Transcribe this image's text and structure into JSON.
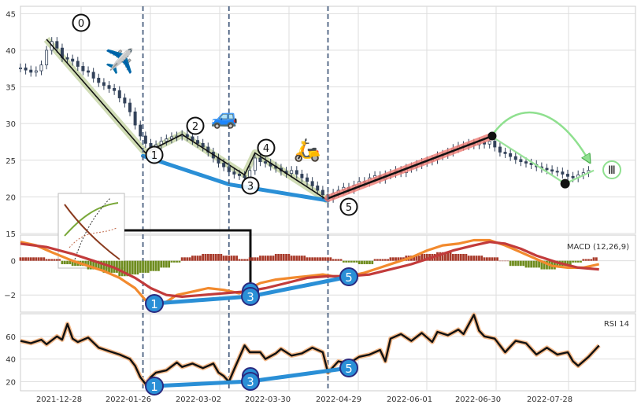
{
  "chart_data": [
    {
      "type": "candlestick",
      "panel": "price",
      "ylim": [
        15,
        46
      ],
      "yticks": [
        15,
        20,
        25,
        30,
        35,
        40,
        45
      ],
      "grid": true,
      "points": [
        [
          0,
          37.6
        ],
        [
          2,
          37.3
        ],
        [
          4,
          37.0
        ],
        [
          6,
          37.2
        ],
        [
          8,
          38.0
        ],
        [
          10,
          40.0
        ],
        [
          12,
          41.2
        ],
        [
          14,
          40.3
        ],
        [
          16,
          39.0
        ],
        [
          18,
          38.8
        ],
        [
          20,
          38.5
        ],
        [
          22,
          37.8
        ],
        [
          24,
          37.2
        ],
        [
          26,
          37.0
        ],
        [
          28,
          36.2
        ],
        [
          30,
          35.6
        ],
        [
          32,
          35.2
        ],
        [
          34,
          34.8
        ],
        [
          36,
          34.5
        ],
        [
          38,
          33.5
        ],
        [
          40,
          32.8
        ],
        [
          42,
          31.6
        ],
        [
          44,
          29.8
        ],
        [
          46,
          28.3
        ],
        [
          48,
          27.3
        ],
        [
          50,
          26.6
        ],
        [
          52,
          27.1
        ],
        [
          54,
          27.6
        ],
        [
          56,
          27.9
        ],
        [
          58,
          28.2
        ],
        [
          60,
          28.3
        ],
        [
          62,
          28.5
        ],
        [
          64,
          28.2
        ],
        [
          66,
          27.7
        ],
        [
          68,
          27.3
        ],
        [
          70,
          26.8
        ],
        [
          72,
          26.1
        ],
        [
          74,
          25.3
        ],
        [
          76,
          24.6
        ],
        [
          78,
          24.1
        ],
        [
          80,
          23.4
        ],
        [
          82,
          23.1
        ],
        [
          84,
          22.9
        ],
        [
          86,
          22.6
        ],
        [
          88,
          23.6
        ],
        [
          90,
          25.3
        ],
        [
          92,
          24.8
        ],
        [
          94,
          24.6
        ],
        [
          96,
          24.2
        ],
        [
          98,
          23.9
        ],
        [
          100,
          23.5
        ],
        [
          102,
          23.2
        ],
        [
          104,
          23.6
        ],
        [
          106,
          23.1
        ],
        [
          108,
          22.6
        ],
        [
          110,
          22.1
        ],
        [
          112,
          21.5
        ],
        [
          114,
          20.9
        ],
        [
          116,
          20.3
        ],
        [
          118,
          19.8
        ],
        [
          120,
          20.5
        ],
        [
          122,
          20.9
        ],
        [
          124,
          21.3
        ],
        [
          126,
          21.0
        ],
        [
          128,
          21.6
        ],
        [
          130,
          22.1
        ],
        [
          132,
          22.0
        ],
        [
          134,
          22.6
        ],
        [
          136,
          22.9
        ],
        [
          138,
          22.4
        ],
        [
          140,
          23.0
        ],
        [
          142,
          23.2
        ],
        [
          144,
          23.6
        ],
        [
          146,
          23.3
        ],
        [
          148,
          23.9
        ],
        [
          150,
          24.1
        ],
        [
          152,
          24.4
        ],
        [
          154,
          24.7
        ],
        [
          156,
          24.9
        ],
        [
          158,
          25.1
        ],
        [
          160,
          25.6
        ],
        [
          162,
          25.8
        ],
        [
          164,
          26.1
        ],
        [
          166,
          26.6
        ],
        [
          168,
          26.9
        ],
        [
          170,
          27.0
        ],
        [
          172,
          27.3
        ],
        [
          174,
          27.1
        ],
        [
          176,
          27.5
        ],
        [
          178,
          27.2
        ],
        [
          180,
          27.6
        ],
        [
          182,
          26.8
        ],
        [
          184,
          26.1
        ],
        [
          186,
          25.9
        ],
        [
          188,
          25.5
        ],
        [
          190,
          25.1
        ],
        [
          192,
          24.8
        ],
        [
          194,
          24.6
        ],
        [
          196,
          24.4
        ],
        [
          198,
          24.1
        ],
        [
          200,
          23.9
        ],
        [
          202,
          23.7
        ],
        [
          204,
          23.5
        ],
        [
          206,
          23.4
        ],
        [
          208,
          23.1
        ],
        [
          210,
          22.8
        ],
        [
          212,
          22.6
        ],
        [
          214,
          23.0
        ],
        [
          216,
          23.3
        ],
        [
          218,
          23.6
        ]
      ]
    },
    {
      "type": "line",
      "panel": "macd",
      "title": "MACD (12,26,9)",
      "ylim": [
        -3,
        1.5
      ],
      "yticks": [
        -2,
        0
      ],
      "series": [
        {
          "values": [
            [
              0,
              1.1
            ],
            [
              6,
              0.9
            ],
            [
              12,
              0.5
            ],
            [
              20,
              0.0
            ],
            [
              26,
              -0.3
            ],
            [
              32,
              -0.6
            ],
            [
              38,
              -1.0
            ],
            [
              44,
              -1.6
            ],
            [
              48,
              -2.3
            ],
            [
              52,
              -2.6
            ],
            [
              56,
              -2.4
            ],
            [
              60,
              -2.0
            ],
            [
              66,
              -1.8
            ],
            [
              72,
              -1.6
            ],
            [
              78,
              -1.7
            ],
            [
              84,
              -1.9
            ],
            [
              88,
              -1.6
            ],
            [
              92,
              -1.3
            ],
            [
              98,
              -1.1
            ],
            [
              104,
              -1.0
            ],
            [
              110,
              -0.9
            ],
            [
              116,
              -0.8
            ],
            [
              120,
              -0.9
            ],
            [
              126,
              -0.9
            ],
            [
              132,
              -0.7
            ],
            [
              138,
              -0.4
            ],
            [
              144,
              -0.1
            ],
            [
              150,
              0.2
            ],
            [
              156,
              0.6
            ],
            [
              162,
              0.9
            ],
            [
              168,
              1.0
            ],
            [
              174,
              1.2
            ],
            [
              180,
              1.2
            ],
            [
              186,
              0.9
            ],
            [
              192,
              0.5
            ],
            [
              198,
              0.1
            ],
            [
              204,
              -0.3
            ],
            [
              210,
              -0.4
            ],
            [
              216,
              -0.4
            ],
            [
              222,
              -0.2
            ]
          ],
          "color": "#f28a2e"
        },
        {
          "values": [
            [
              0,
              1.0
            ],
            [
              10,
              0.8
            ],
            [
              20,
              0.4
            ],
            [
              28,
              0.0
            ],
            [
              36,
              -0.4
            ],
            [
              44,
              -1.0
            ],
            [
              50,
              -1.6
            ],
            [
              56,
              -2.0
            ],
            [
              62,
              -2.1
            ],
            [
              70,
              -2.0
            ],
            [
              78,
              -1.9
            ],
            [
              86,
              -1.8
            ],
            [
              94,
              -1.6
            ],
            [
              102,
              -1.3
            ],
            [
              110,
              -1.0
            ],
            [
              118,
              -0.9
            ],
            [
              126,
              -0.9
            ],
            [
              134,
              -0.8
            ],
            [
              142,
              -0.5
            ],
            [
              150,
              -0.2
            ],
            [
              158,
              0.2
            ],
            [
              166,
              0.6
            ],
            [
              174,
              0.9
            ],
            [
              180,
              1.1
            ],
            [
              186,
              1.0
            ],
            [
              192,
              0.7
            ],
            [
              198,
              0.3
            ],
            [
              206,
              -0.1
            ],
            [
              214,
              -0.4
            ],
            [
              222,
              -0.5
            ]
          ],
          "color": "#c23b3b"
        }
      ],
      "histogram": [
        [
          0,
          0.2
        ],
        [
          4,
          0.2
        ],
        [
          10,
          0.1
        ],
        [
          16,
          -0.2
        ],
        [
          20,
          -0.3
        ],
        [
          26,
          -0.5
        ],
        [
          32,
          -0.7
        ],
        [
          38,
          -0.9
        ],
        [
          42,
          -0.8
        ],
        [
          46,
          -0.7
        ],
        [
          50,
          -0.6
        ],
        [
          54,
          -0.4
        ],
        [
          58,
          -0.1
        ],
        [
          62,
          0.2
        ],
        [
          66,
          0.3
        ],
        [
          70,
          0.4
        ],
        [
          74,
          0.4
        ],
        [
          78,
          0.3
        ],
        [
          84,
          0.1
        ],
        [
          88,
          0.2
        ],
        [
          92,
          0.3
        ],
        [
          98,
          0.4
        ],
        [
          104,
          0.3
        ],
        [
          110,
          0.2
        ],
        [
          116,
          0.2
        ],
        [
          120,
          0.1
        ],
        [
          124,
          -0.1
        ],
        [
          130,
          -0.2
        ],
        [
          136,
          0.1
        ],
        [
          142,
          0.2
        ],
        [
          148,
          0.3
        ],
        [
          154,
          0.4
        ],
        [
          160,
          0.5
        ],
        [
          166,
          0.4
        ],
        [
          172,
          0.3
        ],
        [
          178,
          0.2
        ],
        [
          184,
          0.0
        ],
        [
          188,
          -0.3
        ],
        [
          194,
          -0.4
        ],
        [
          200,
          -0.5
        ],
        [
          206,
          -0.3
        ],
        [
          212,
          -0.1
        ],
        [
          216,
          0.1
        ],
        [
          220,
          0.2
        ]
      ]
    },
    {
      "type": "line",
      "panel": "rsi",
      "title": "RSI 14",
      "ylim": [
        12,
        80
      ],
      "yticks": [
        20,
        40,
        60
      ],
      "series": [
        {
          "values": [
            [
              0,
              56
            ],
            [
              4,
              54
            ],
            [
              8,
              57
            ],
            [
              10,
              53
            ],
            [
              14,
              60
            ],
            [
              16,
              57
            ],
            [
              18,
              71
            ],
            [
              20,
              58
            ],
            [
              22,
              55
            ],
            [
              26,
              59
            ],
            [
              30,
              50
            ],
            [
              34,
              47
            ],
            [
              38,
              44
            ],
            [
              42,
              40
            ],
            [
              44,
              34
            ],
            [
              46,
              24
            ],
            [
              48,
              18
            ],
            [
              50,
              24
            ],
            [
              52,
              28
            ],
            [
              56,
              30
            ],
            [
              60,
              37
            ],
            [
              62,
              33
            ],
            [
              66,
              36
            ],
            [
              70,
              32
            ],
            [
              74,
              36
            ],
            [
              76,
              28
            ],
            [
              78,
              25
            ],
            [
              80,
              20
            ],
            [
              82,
              31
            ],
            [
              86,
              52
            ],
            [
              88,
              46
            ],
            [
              92,
              46
            ],
            [
              94,
              40
            ],
            [
              98,
              45
            ],
            [
              100,
              49
            ],
            [
              104,
              43
            ],
            [
              108,
              45
            ],
            [
              112,
              50
            ],
            [
              116,
              46
            ],
            [
              118,
              28
            ],
            [
              122,
              38
            ],
            [
              126,
              36
            ],
            [
              130,
              42
            ],
            [
              134,
              44
            ],
            [
              138,
              48
            ],
            [
              140,
              38
            ],
            [
              142,
              58
            ],
            [
              146,
              62
            ],
            [
              150,
              56
            ],
            [
              154,
              63
            ],
            [
              158,
              55
            ],
            [
              160,
              64
            ],
            [
              164,
              61
            ],
            [
              168,
              66
            ],
            [
              170,
              62
            ],
            [
              174,
              79
            ],
            [
              176,
              65
            ],
            [
              178,
              60
            ],
            [
              182,
              58
            ],
            [
              186,
              46
            ],
            [
              190,
              56
            ],
            [
              194,
              54
            ],
            [
              198,
              44
            ],
            [
              202,
              50
            ],
            [
              206,
              44
            ],
            [
              210,
              46
            ],
            [
              212,
              38
            ],
            [
              214,
              34
            ],
            [
              218,
              42
            ],
            [
              222,
              52
            ]
          ],
          "color": "#111111"
        }
      ]
    }
  ],
  "x_axis": {
    "ticks": [
      "2021-12-28",
      "2022-01-26",
      "2022-03-02",
      "2022-03-30",
      "2022-04-29",
      "2022-06-01",
      "2022-06-30",
      "2022-07-28"
    ]
  },
  "annotations": {
    "wave_labels": [
      "0",
      "1",
      "2",
      "3",
      "4",
      "5",
      "Ⅲ"
    ],
    "divergence_labels": [
      "1",
      "3",
      "5"
    ],
    "emoji": [
      "✈️",
      "🚙",
      "🛵"
    ]
  }
}
